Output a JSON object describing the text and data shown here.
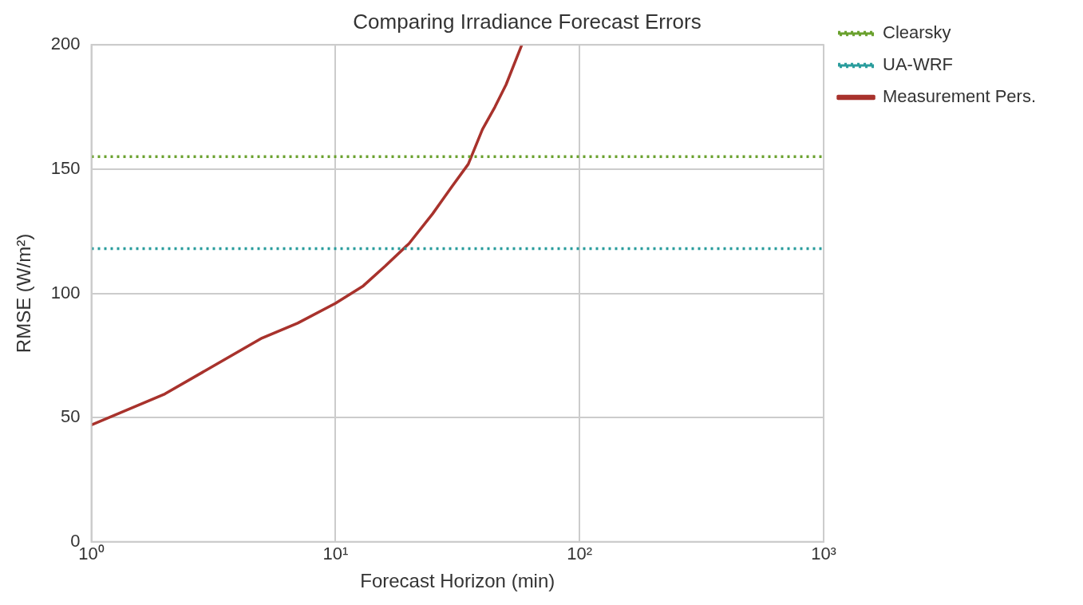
{
  "chart_data": {
    "type": "line",
    "title": "Comparing Irradiance Forecast Errors",
    "xlabel": "Forecast Horizon (min)",
    "ylabel": "RMSE (W/m²)",
    "log": "x",
    "xlim": [
      1,
      1000
    ],
    "xticks": [
      {
        "value": 1,
        "label": "10⁰"
      },
      {
        "value": 10,
        "label": "10¹"
      },
      {
        "value": 100,
        "label": "10²"
      },
      {
        "value": 1000,
        "label": "10³"
      }
    ],
    "ylim": [
      0,
      200
    ],
    "yticks": [
      0,
      50,
      100,
      150,
      200
    ],
    "grid": true,
    "legend": "right",
    "series": [
      {
        "name": "Clearsky",
        "color": "#6aa12e",
        "line_style": "dotted",
        "x": [
          1,
          1000
        ],
        "values": [
          155,
          155
        ]
      },
      {
        "name": "UA-WRF",
        "color": "#2a9d9d",
        "line_style": "dotted",
        "x": [
          1,
          1000
        ],
        "values": [
          118,
          118
        ]
      },
      {
        "name": "Measurement Pers.",
        "color": "#a8322c",
        "line_style": "solid",
        "x": [
          1,
          2,
          5,
          7,
          10,
          13,
          16,
          20,
          25,
          30,
          35,
          40,
          45,
          50,
          58
        ],
        "values": [
          47,
          59.5,
          82,
          88,
          96,
          103,
          111,
          120,
          132,
          143,
          152,
          166,
          175,
          184,
          200
        ]
      }
    ]
  }
}
